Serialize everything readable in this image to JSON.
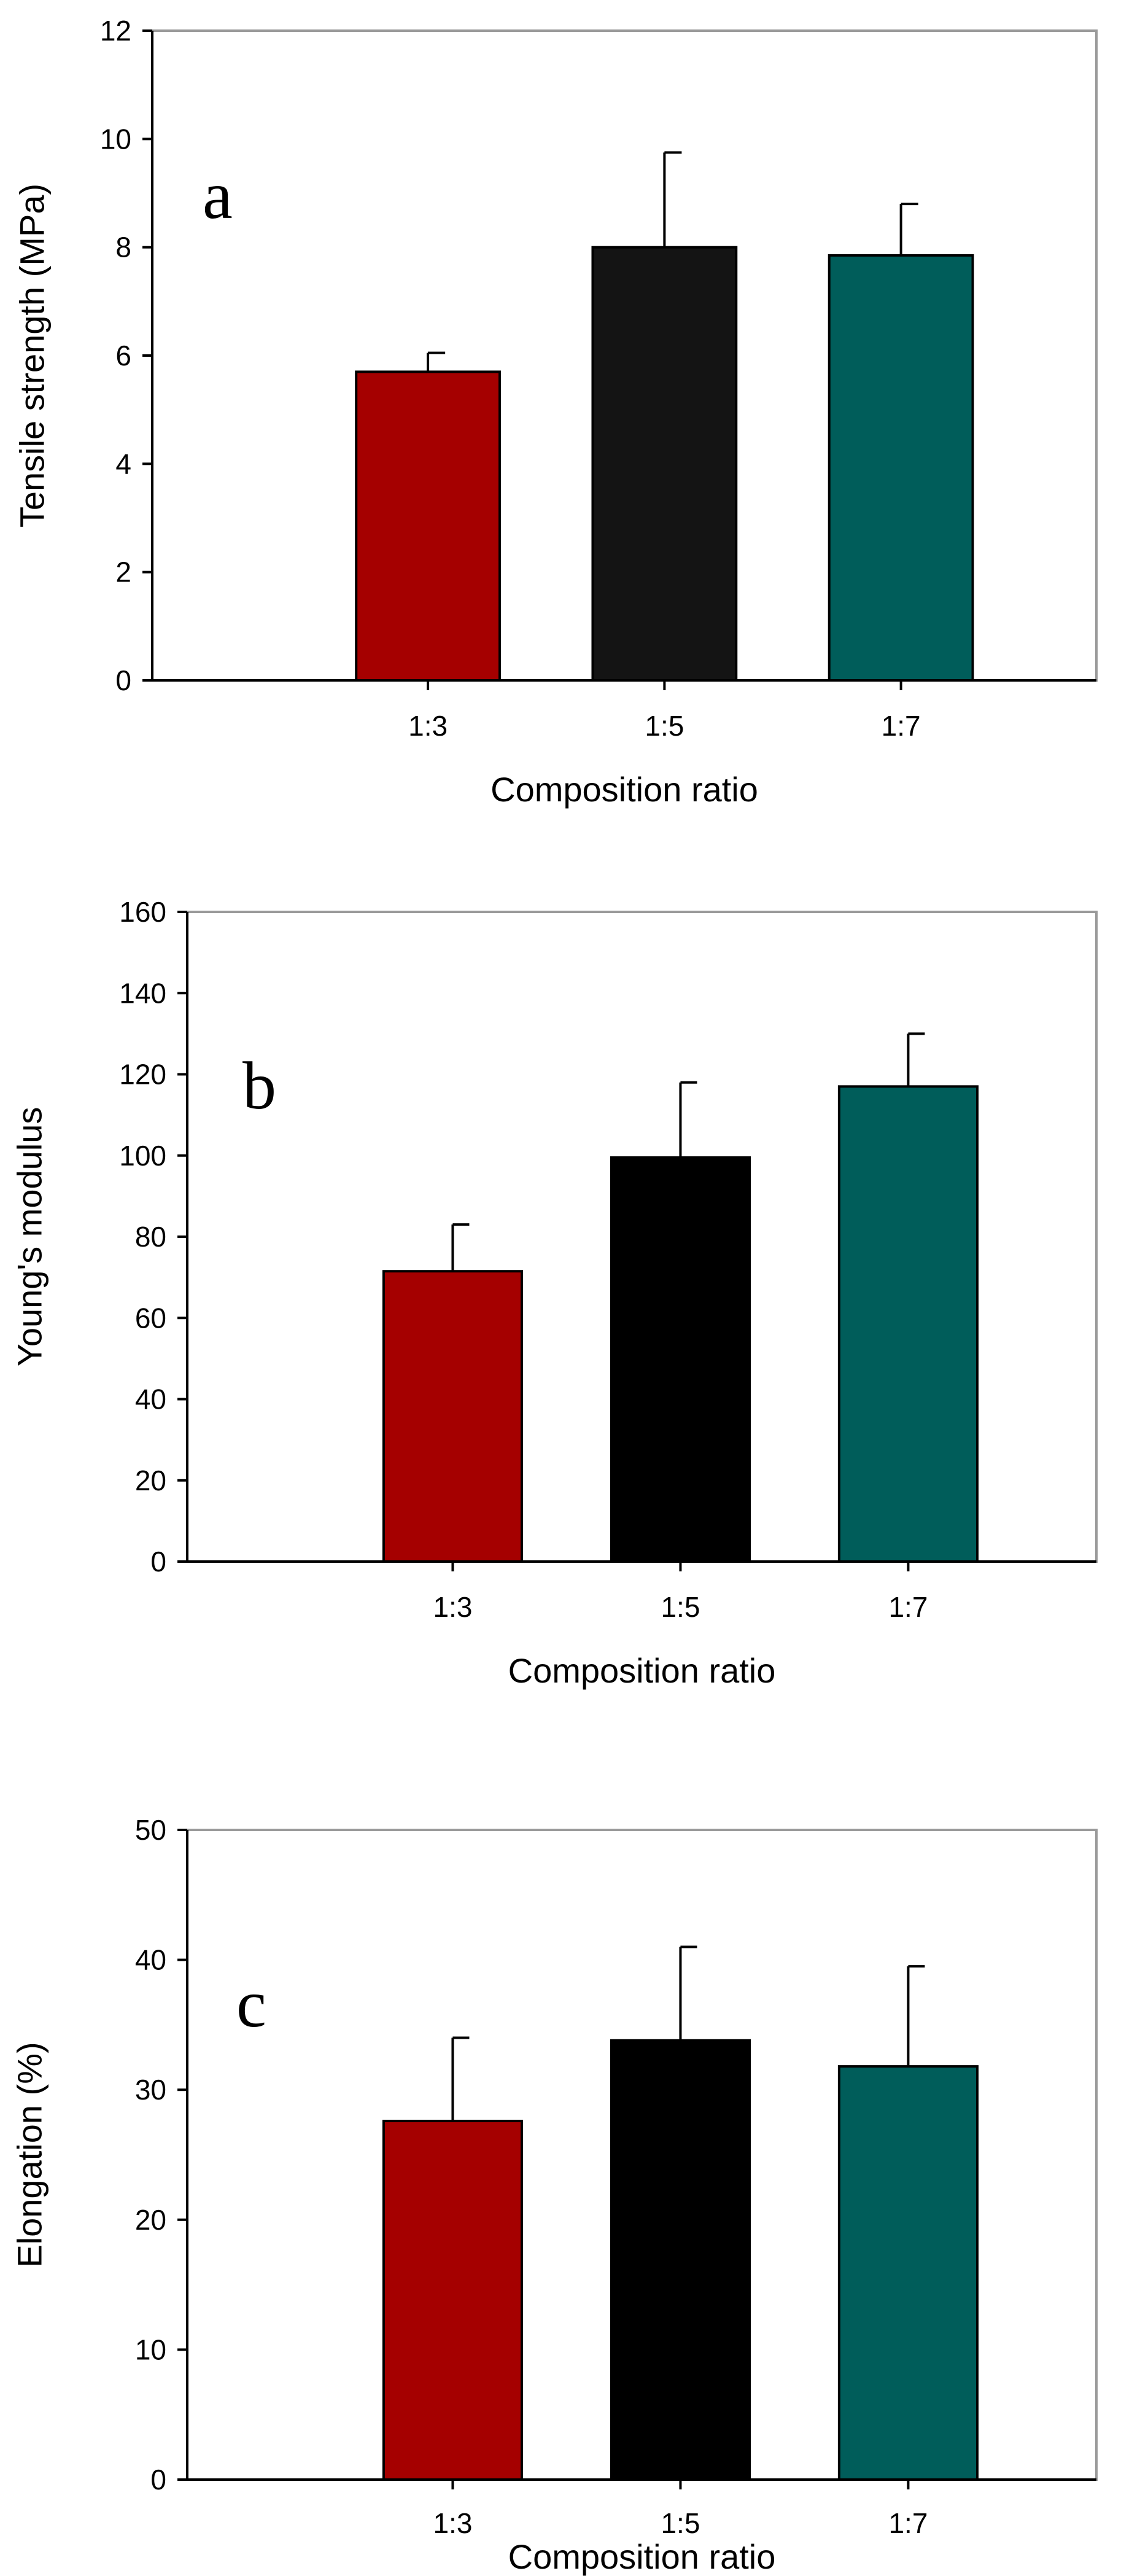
{
  "chart_data": [
    {
      "type": "bar",
      "panel_label": "a",
      "categories": [
        "1:3",
        "1:5",
        "1:7"
      ],
      "values": [
        5.7,
        8.0,
        7.85
      ],
      "error_bars": [
        0.35,
        1.75,
        0.95
      ],
      "colors": [
        "#a50000",
        "#141414",
        "#005d5a"
      ],
      "xlabel": "Composition ratio",
      "ylabel": "Tensile strength (MPa)",
      "ylim": [
        0,
        12
      ],
      "yticks": [
        0,
        2,
        4,
        6,
        8,
        10,
        12
      ],
      "grid": false
    },
    {
      "type": "bar",
      "panel_label": "b",
      "categories": [
        "1:3",
        "1:5",
        "1:7"
      ],
      "values": [
        71.5,
        99.5,
        117
      ],
      "error_bars": [
        11.5,
        18.5,
        13
      ],
      "colors": [
        "#a50000",
        "#000000",
        "#005d5a"
      ],
      "xlabel": "Composition ratio",
      "ylabel": "Young's modulus",
      "ylim": [
        0,
        160
      ],
      "yticks": [
        0,
        20,
        40,
        60,
        80,
        100,
        120,
        140,
        160
      ],
      "grid": false
    },
    {
      "type": "bar",
      "panel_label": "c",
      "categories": [
        "1:3",
        "1:5",
        "1:7"
      ],
      "values": [
        27.6,
        33.8,
        31.8
      ],
      "error_bars": [
        6.4,
        7.2,
        7.7
      ],
      "colors": [
        "#a50000",
        "#000000",
        "#005d5a"
      ],
      "xlabel": "Composition ratio",
      "ylabel": "Elongation (%)",
      "ylim": [
        0,
        50
      ],
      "yticks": [
        0,
        10,
        20,
        30,
        40,
        50
      ],
      "grid": false
    }
  ]
}
